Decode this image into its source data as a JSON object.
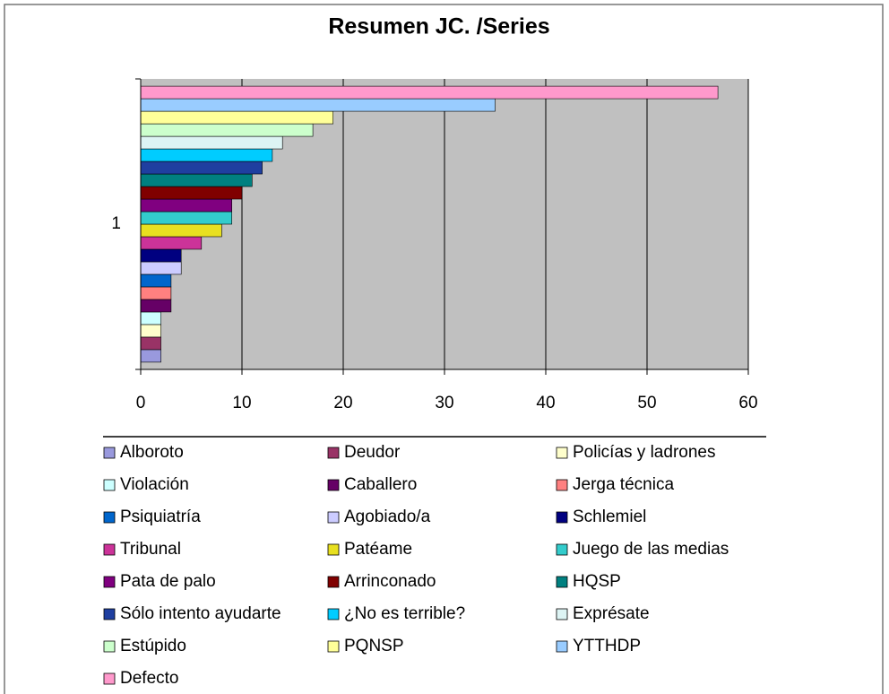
{
  "chart_data": {
    "type": "hbar",
    "title": "Resumen JC. /Series",
    "categories": [
      "1"
    ],
    "series": [
      {
        "name": "Alboroto",
        "color": "#9999dd",
        "values": [
          2
        ]
      },
      {
        "name": "Deudor",
        "color": "#993366",
        "values": [
          2
        ]
      },
      {
        "name": "Policías y ladrones",
        "color": "#ffffcc",
        "values": [
          2
        ]
      },
      {
        "name": "Violación",
        "color": "#ccffff",
        "values": [
          2
        ]
      },
      {
        "name": "Caballero",
        "color": "#660066",
        "values": [
          3
        ]
      },
      {
        "name": "Jerga técnica",
        "color": "#ff8080",
        "values": [
          3
        ]
      },
      {
        "name": "Psiquiatría",
        "color": "#0066cc",
        "values": [
          3
        ]
      },
      {
        "name": "Agobiado/a",
        "color": "#ccccff",
        "values": [
          4
        ]
      },
      {
        "name": "Schlemiel",
        "color": "#000080",
        "values": [
          4
        ]
      },
      {
        "name": "Tribunal",
        "color": "#cc3399",
        "values": [
          6
        ]
      },
      {
        "name": "Patéame",
        "color": "#e8e020",
        "values": [
          8
        ]
      },
      {
        "name": "Juego de las medias",
        "color": "#33cccc",
        "values": [
          9
        ]
      },
      {
        "name": "Pata de palo",
        "color": "#800080",
        "values": [
          9
        ]
      },
      {
        "name": "Arrinconado",
        "color": "#800000",
        "values": [
          10
        ]
      },
      {
        "name": "HQSP",
        "color": "#008080",
        "values": [
          11
        ]
      },
      {
        "name": "Sólo intento ayudarte",
        "color": "#1f3fa0",
        "values": [
          12
        ]
      },
      {
        "name": "¿No es terrible?",
        "color": "#00ccff",
        "values": [
          13
        ]
      },
      {
        "name": "Exprésate",
        "color": "#ddf4f4",
        "values": [
          14
        ]
      },
      {
        "name": "Estúpido",
        "color": "#ccffcc",
        "values": [
          17
        ]
      },
      {
        "name": "PQNSP",
        "color": "#ffff99",
        "values": [
          19
        ]
      },
      {
        "name": "YTTHDP",
        "color": "#99ccff",
        "values": [
          35
        ]
      },
      {
        "name": "Defecto",
        "color": "#ff99cc",
        "values": [
          57
        ]
      }
    ],
    "xlim": [
      0,
      60
    ],
    "xticks": [
      0,
      10,
      20,
      30,
      40,
      50,
      60
    ],
    "grid": true,
    "legend": "bottom"
  }
}
